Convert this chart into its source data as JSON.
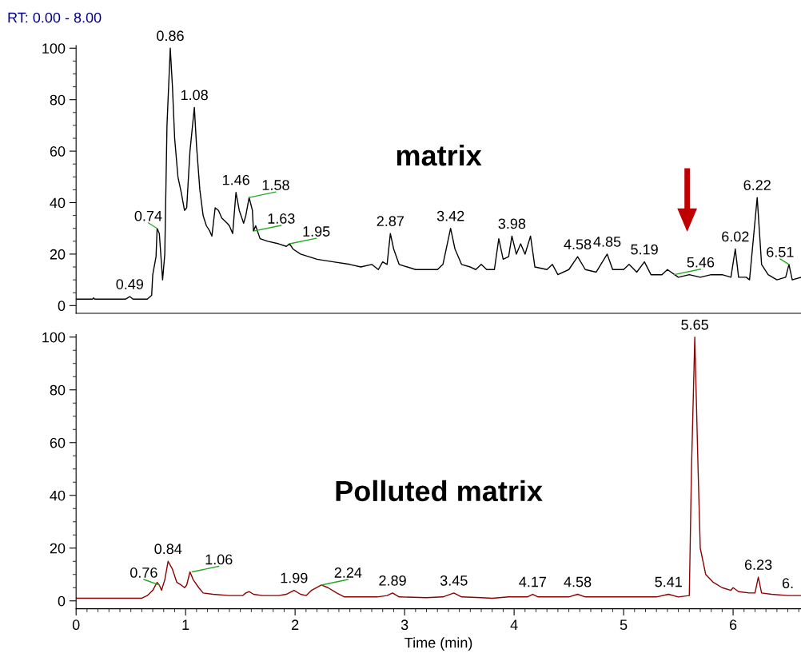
{
  "chart_data": [
    {
      "type": "line",
      "title": "RT: 0.00 - 8.00",
      "xlim": [
        0,
        6.62
      ],
      "xticks": [
        0,
        1,
        2,
        3,
        4,
        5,
        6
      ],
      "ylim": [
        -3,
        101
      ],
      "yticks": [
        0,
        20,
        40,
        60,
        80,
        100
      ],
      "tick_labels": "y",
      "grid": false,
      "legend": false,
      "series": [
        {
          "color": "#000000",
          "x": [
            0,
            0.15,
            0.16,
            0.17,
            0.45,
            0.49,
            0.52,
            0.65,
            0.69,
            0.7,
            0.73,
            0.74,
            0.76,
            0.79,
            0.81,
            0.83,
            0.86,
            0.88,
            0.9,
            0.93,
            0.96,
            0.99,
            1.01,
            1.04,
            1.08,
            1.1,
            1.13,
            1.16,
            1.19,
            1.22,
            1.24,
            1.27,
            1.3,
            1.33,
            1.38,
            1.4,
            1.43,
            1.46,
            1.49,
            1.53,
            1.55,
            1.58,
            1.61,
            1.62,
            1.64,
            1.68,
            1.75,
            1.85,
            1.92,
            1.95,
            1.98,
            2.05,
            2.2,
            2.35,
            2.5,
            2.6,
            2.7,
            2.76,
            2.8,
            2.84,
            2.87,
            2.9,
            2.95,
            3.1,
            3.2,
            3.3,
            3.35,
            3.42,
            3.46,
            3.52,
            3.6,
            3.65,
            3.7,
            3.75,
            3.82,
            3.86,
            3.9,
            3.95,
            3.98,
            4.02,
            4.06,
            4.1,
            4.15,
            4.19,
            4.3,
            4.35,
            4.4,
            4.5,
            4.58,
            4.65,
            4.75,
            4.85,
            4.9,
            5.0,
            5.05,
            5.12,
            5.19,
            5.25,
            5.35,
            5.4,
            5.5,
            5.6,
            5.7,
            5.8,
            5.9,
            5.98,
            6.02,
            6.05,
            6.12,
            6.15,
            6.22,
            6.26,
            6.32,
            6.4,
            6.48,
            6.51,
            6.54,
            6.62
          ],
          "values": [
            2.5,
            2.5,
            3,
            2.5,
            2.5,
            3.5,
            2.5,
            2.5,
            4,
            12,
            19,
            30,
            28,
            10,
            20,
            70,
            100,
            85,
            65,
            50,
            44,
            37,
            38,
            60,
            77,
            62,
            45,
            35,
            31,
            29,
            27,
            38,
            37,
            34,
            32,
            31,
            28,
            44,
            37,
            32,
            35,
            42,
            37,
            29,
            31,
            26,
            25,
            24,
            23,
            24,
            22,
            20,
            18,
            17,
            16,
            15,
            16,
            14,
            17,
            16,
            28,
            22,
            16,
            14,
            14,
            14,
            16,
            30,
            22,
            16,
            15,
            14,
            16,
            14,
            14,
            26,
            18,
            19,
            27,
            20,
            24,
            20,
            27,
            15,
            14,
            16,
            12,
            14,
            19,
            14,
            13,
            20,
            14,
            14,
            16,
            13,
            17,
            12,
            12,
            14,
            11,
            12,
            11,
            12,
            12,
            11,
            22,
            11,
            11,
            10,
            42,
            16,
            12,
            10,
            11,
            16,
            10,
            11
          ]
        }
      ],
      "annotations": [
        "matrix",
        {
          "text": "0.49",
          "x": 0.49,
          "y": 3.5
        },
        {
          "text": "0.74",
          "x": 0.74,
          "y": 30
        },
        {
          "text": "0.86",
          "x": 0.86,
          "y": 100
        },
        {
          "text": "1.08",
          "x": 1.08,
          "y": 77
        },
        {
          "text": "1.46",
          "x": 1.46,
          "y": 44
        },
        {
          "text": "1.58",
          "x": 1.58,
          "y": 42
        },
        {
          "text": "1.63",
          "x": 1.63,
          "y": 29
        },
        {
          "text": "1.95",
          "x": 1.95,
          "y": 24
        },
        {
          "text": "2.87",
          "x": 2.87,
          "y": 28
        },
        {
          "text": "3.42",
          "x": 3.42,
          "y": 30
        },
        {
          "text": "3.98",
          "x": 3.98,
          "y": 27
        },
        {
          "text": "4.58",
          "x": 4.58,
          "y": 19
        },
        {
          "text": "4.85",
          "x": 4.85,
          "y": 20
        },
        {
          "text": "5.19",
          "x": 5.19,
          "y": 17
        },
        {
          "text": "5.46",
          "x": 5.46,
          "y": 12
        },
        {
          "text": "6.02",
          "x": 6.02,
          "y": 22
        },
        {
          "text": "6.22",
          "x": 6.22,
          "y": 42
        },
        {
          "text": "6.51",
          "x": 6.51,
          "y": 16
        }
      ]
    },
    {
      "type": "line",
      "xlabel": "Time (min)",
      "xlim": [
        0,
        6.62
      ],
      "xticks": [
        0,
        1,
        2,
        3,
        4,
        5,
        6
      ],
      "ylim": [
        -3,
        101
      ],
      "yticks": [
        0,
        20,
        40,
        60,
        80,
        100
      ],
      "grid": false,
      "legend": false,
      "series": [
        {
          "color": "#8b0000",
          "x": [
            0,
            0.6,
            0.65,
            0.7,
            0.74,
            0.76,
            0.78,
            0.81,
            0.84,
            0.88,
            0.92,
            0.96,
            0.99,
            1.01,
            1.04,
            1.07,
            1.12,
            1.16,
            1.25,
            1.4,
            1.52,
            1.55,
            1.58,
            1.62,
            1.7,
            1.85,
            1.92,
            1.99,
            2.05,
            2.1,
            2.15,
            2.24,
            2.3,
            2.38,
            2.45,
            2.6,
            2.75,
            2.84,
            2.89,
            2.95,
            3.2,
            3.35,
            3.45,
            3.52,
            3.7,
            3.8,
            3.95,
            4.12,
            4.17,
            4.22,
            4.4,
            4.5,
            4.58,
            4.65,
            5.0,
            5.3,
            5.41,
            5.5,
            5.6,
            5.62,
            5.65,
            5.68,
            5.7,
            5.75,
            5.82,
            5.9,
            5.98,
            6.0,
            6.05,
            6.15,
            6.2,
            6.23,
            6.26,
            6.35,
            6.5,
            6.62
          ],
          "values": [
            1,
            1,
            2,
            4,
            7,
            6,
            4,
            8,
            15,
            12,
            7,
            6,
            5,
            6,
            11,
            8,
            5,
            3,
            2.5,
            2,
            2,
            3,
            3.5,
            2.5,
            2,
            2,
            2.5,
            4,
            2.5,
            2,
            4,
            6,
            5,
            3,
            1.5,
            1.5,
            1.5,
            2,
            3,
            1.5,
            1.2,
            1.5,
            3,
            1.5,
            1.2,
            1,
            1.5,
            1.5,
            2.5,
            1.5,
            1.5,
            1.5,
            2.5,
            1.5,
            1.5,
            1.5,
            2.5,
            1.5,
            2,
            50,
            100,
            50,
            20,
            10,
            7,
            5,
            4,
            5,
            3.5,
            3,
            3,
            9,
            3,
            2.5,
            2,
            2
          ]
        }
      ],
      "annotations": [
        "Polluted matrix",
        {
          "text": "0.76",
          "x": 0.76,
          "y": 6
        },
        {
          "text": "0.84",
          "x": 0.84,
          "y": 15
        },
        {
          "text": "1.06",
          "x": 1.06,
          "y": 11
        },
        {
          "text": "1.99",
          "x": 1.99,
          "y": 4
        },
        {
          "text": "2.24",
          "x": 2.24,
          "y": 6
        },
        {
          "text": "2.89",
          "x": 2.89,
          "y": 3
        },
        {
          "text": "3.45",
          "x": 3.45,
          "y": 3
        },
        {
          "text": "4.17",
          "x": 4.17,
          "y": 2.5
        },
        {
          "text": "4.58",
          "x": 4.58,
          "y": 2.5
        },
        {
          "text": "5.41",
          "x": 5.41,
          "y": 2.5
        },
        {
          "text": "5.65",
          "x": 5.65,
          "y": 100
        },
        {
          "text": "6.23",
          "x": 6.23,
          "y": 9
        },
        {
          "text": "6.",
          "x": 6.5,
          "y": 2
        }
      ]
    }
  ]
}
